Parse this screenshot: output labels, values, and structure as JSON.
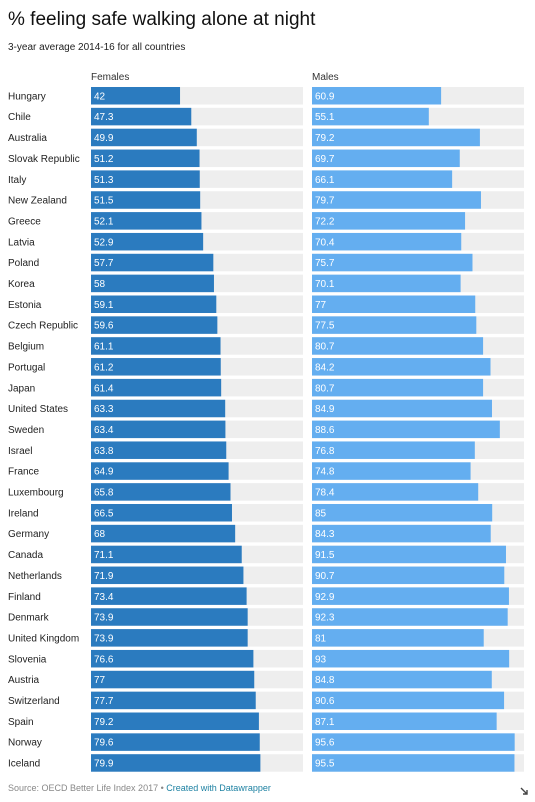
{
  "header": {
    "title": "% feeling safe walking alone at night",
    "subtitle": "3-year average 2014-16 for all countries"
  },
  "footer": {
    "source": "Source: OECD Better Life Index 2017",
    "separator": "•",
    "credit": "Created with Datawrapper"
  },
  "colors": {
    "females": "#2b7bbf",
    "males": "#64aef0",
    "track": "#eeeeee"
  },
  "icons": {
    "corner": "resize-icon"
  },
  "chart_data": {
    "type": "bar",
    "orientation": "horizontal",
    "xlim": [
      0,
      100
    ],
    "grid": false,
    "categories": [
      "Hungary",
      "Chile",
      "Australia",
      "Slovak Republic",
      "Italy",
      "New Zealand",
      "Greece",
      "Latvia",
      "Poland",
      "Korea",
      "Estonia",
      "Czech Republic",
      "Belgium",
      "Portugal",
      "Japan",
      "United States",
      "Sweden",
      "Israel",
      "France",
      "Luxembourg",
      "Ireland",
      "Germany",
      "Canada",
      "Netherlands",
      "Finland",
      "Denmark",
      "United Kingdom",
      "Slovenia",
      "Austria",
      "Switzerland",
      "Spain",
      "Norway",
      "Iceland"
    ],
    "series": [
      {
        "name": "Females",
        "labels": [
          "42",
          "47.3",
          "49.9",
          "51.2",
          "51.3",
          "51.5",
          "52.1",
          "52.9",
          "57.7",
          "58",
          "59.1",
          "59.6",
          "61.1",
          "61.2",
          "61.4",
          "63.3",
          "63.4",
          "63.8",
          "64.9",
          "65.8",
          "66.5",
          "68",
          "71.1",
          "71.9",
          "73.4",
          "73.9",
          "73.9",
          "76.6",
          "77",
          "77.7",
          "79.2",
          "79.6",
          "79.9"
        ],
        "values": [
          42,
          47.3,
          49.9,
          51.2,
          51.3,
          51.5,
          52.1,
          52.9,
          57.7,
          58,
          59.1,
          59.6,
          61.1,
          61.2,
          61.4,
          63.3,
          63.4,
          63.8,
          64.9,
          65.8,
          66.5,
          68,
          71.1,
          71.9,
          73.4,
          73.9,
          73.9,
          76.6,
          77,
          77.7,
          79.2,
          79.6,
          79.9
        ]
      },
      {
        "name": "Males",
        "labels": [
          "60.9",
          "55.1",
          "79.2",
          "69.7",
          "66.1",
          "79.7",
          "72.2",
          "70.4",
          "75.7",
          "70.1",
          "77",
          "77.5",
          "80.7",
          "84.2",
          "80.7",
          "84.9",
          "88.6",
          "76.8",
          "74.8",
          "78.4",
          "85",
          "84.3",
          "91.5",
          "90.7",
          "92.9",
          "92.3",
          "81",
          "93",
          "84.8",
          "90.6",
          "87.1",
          "95.6",
          "95.5"
        ],
        "values": [
          60.9,
          55.1,
          79.2,
          69.7,
          66.1,
          79.7,
          72.2,
          70.4,
          75.7,
          70.1,
          77,
          77.5,
          80.7,
          84.2,
          80.7,
          84.9,
          88.6,
          76.8,
          74.8,
          78.4,
          85,
          84.3,
          91.5,
          90.7,
          92.9,
          92.3,
          81,
          93,
          84.8,
          90.6,
          87.1,
          95.6,
          95.5
        ]
      }
    ]
  }
}
